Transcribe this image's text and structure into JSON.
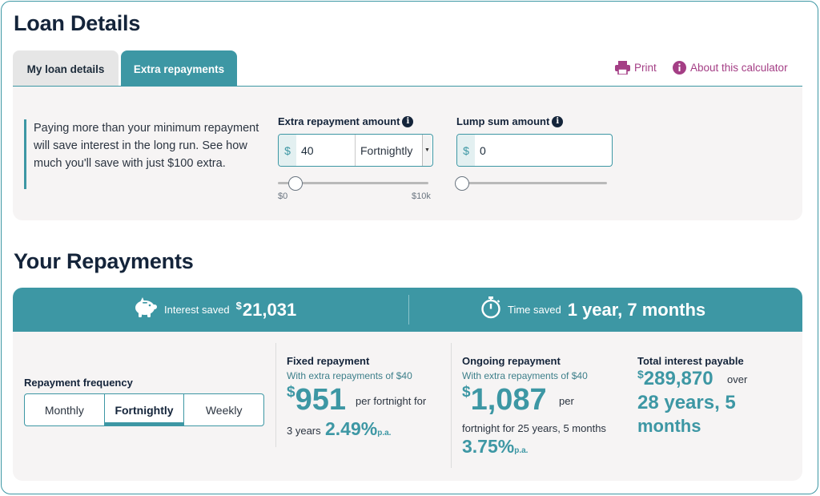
{
  "loan_details": {
    "title": "Loan Details",
    "tabs": [
      "My loan details",
      "Extra repayments"
    ],
    "print_label": "Print",
    "about_label": "About this calculator",
    "intro": "Paying more than your minimum repayment will save interest in the long run. See how much you'll save with just $100 extra.",
    "extra_repayment": {
      "label": "Extra repayment amount",
      "currency": "$",
      "value": "40",
      "frequency": "Fortnightly",
      "slider_min_label": "$0",
      "slider_max_label": "$10k"
    },
    "lump_sum": {
      "label": "Lump sum amount",
      "currency": "$",
      "value": "0"
    }
  },
  "repayments": {
    "title": "Your Repayments",
    "interest_saved_label": "Interest saved",
    "interest_saved_currency": "$",
    "interest_saved_value": "21,031",
    "time_saved_label": "Time saved",
    "time_saved_value": "1 year, 7 months",
    "frequency_label": "Repayment frequency",
    "frequency_options": [
      "Monthly",
      "Fortnightly",
      "Weekly"
    ],
    "frequency_selected": "Fortnightly",
    "fixed": {
      "title": "Fixed repayment",
      "subtitle": "With extra repayments of $40",
      "currency": "$",
      "amount": "951",
      "suffix": "per fortnight for",
      "term": "3 years",
      "rate": "2.49%",
      "rate_unit": "p.a."
    },
    "ongoing": {
      "title": "Ongoing repayment",
      "subtitle": "With extra repayments of $40",
      "currency": "$",
      "amount": "1,087",
      "suffix": "per",
      "term": "fortnight for 25 years, 5 months",
      "rate": "3.75%",
      "rate_unit": "p.a."
    },
    "total_interest": {
      "title": "Total interest payable",
      "currency": "$",
      "amount": "289,870",
      "over": "over",
      "term_line1": "28 years, 5",
      "term_line2": "months"
    }
  },
  "colors": {
    "accent": "#3d97a4",
    "heading": "#14243a",
    "link": "#a43e85",
    "panel": "#f6f4f4"
  }
}
